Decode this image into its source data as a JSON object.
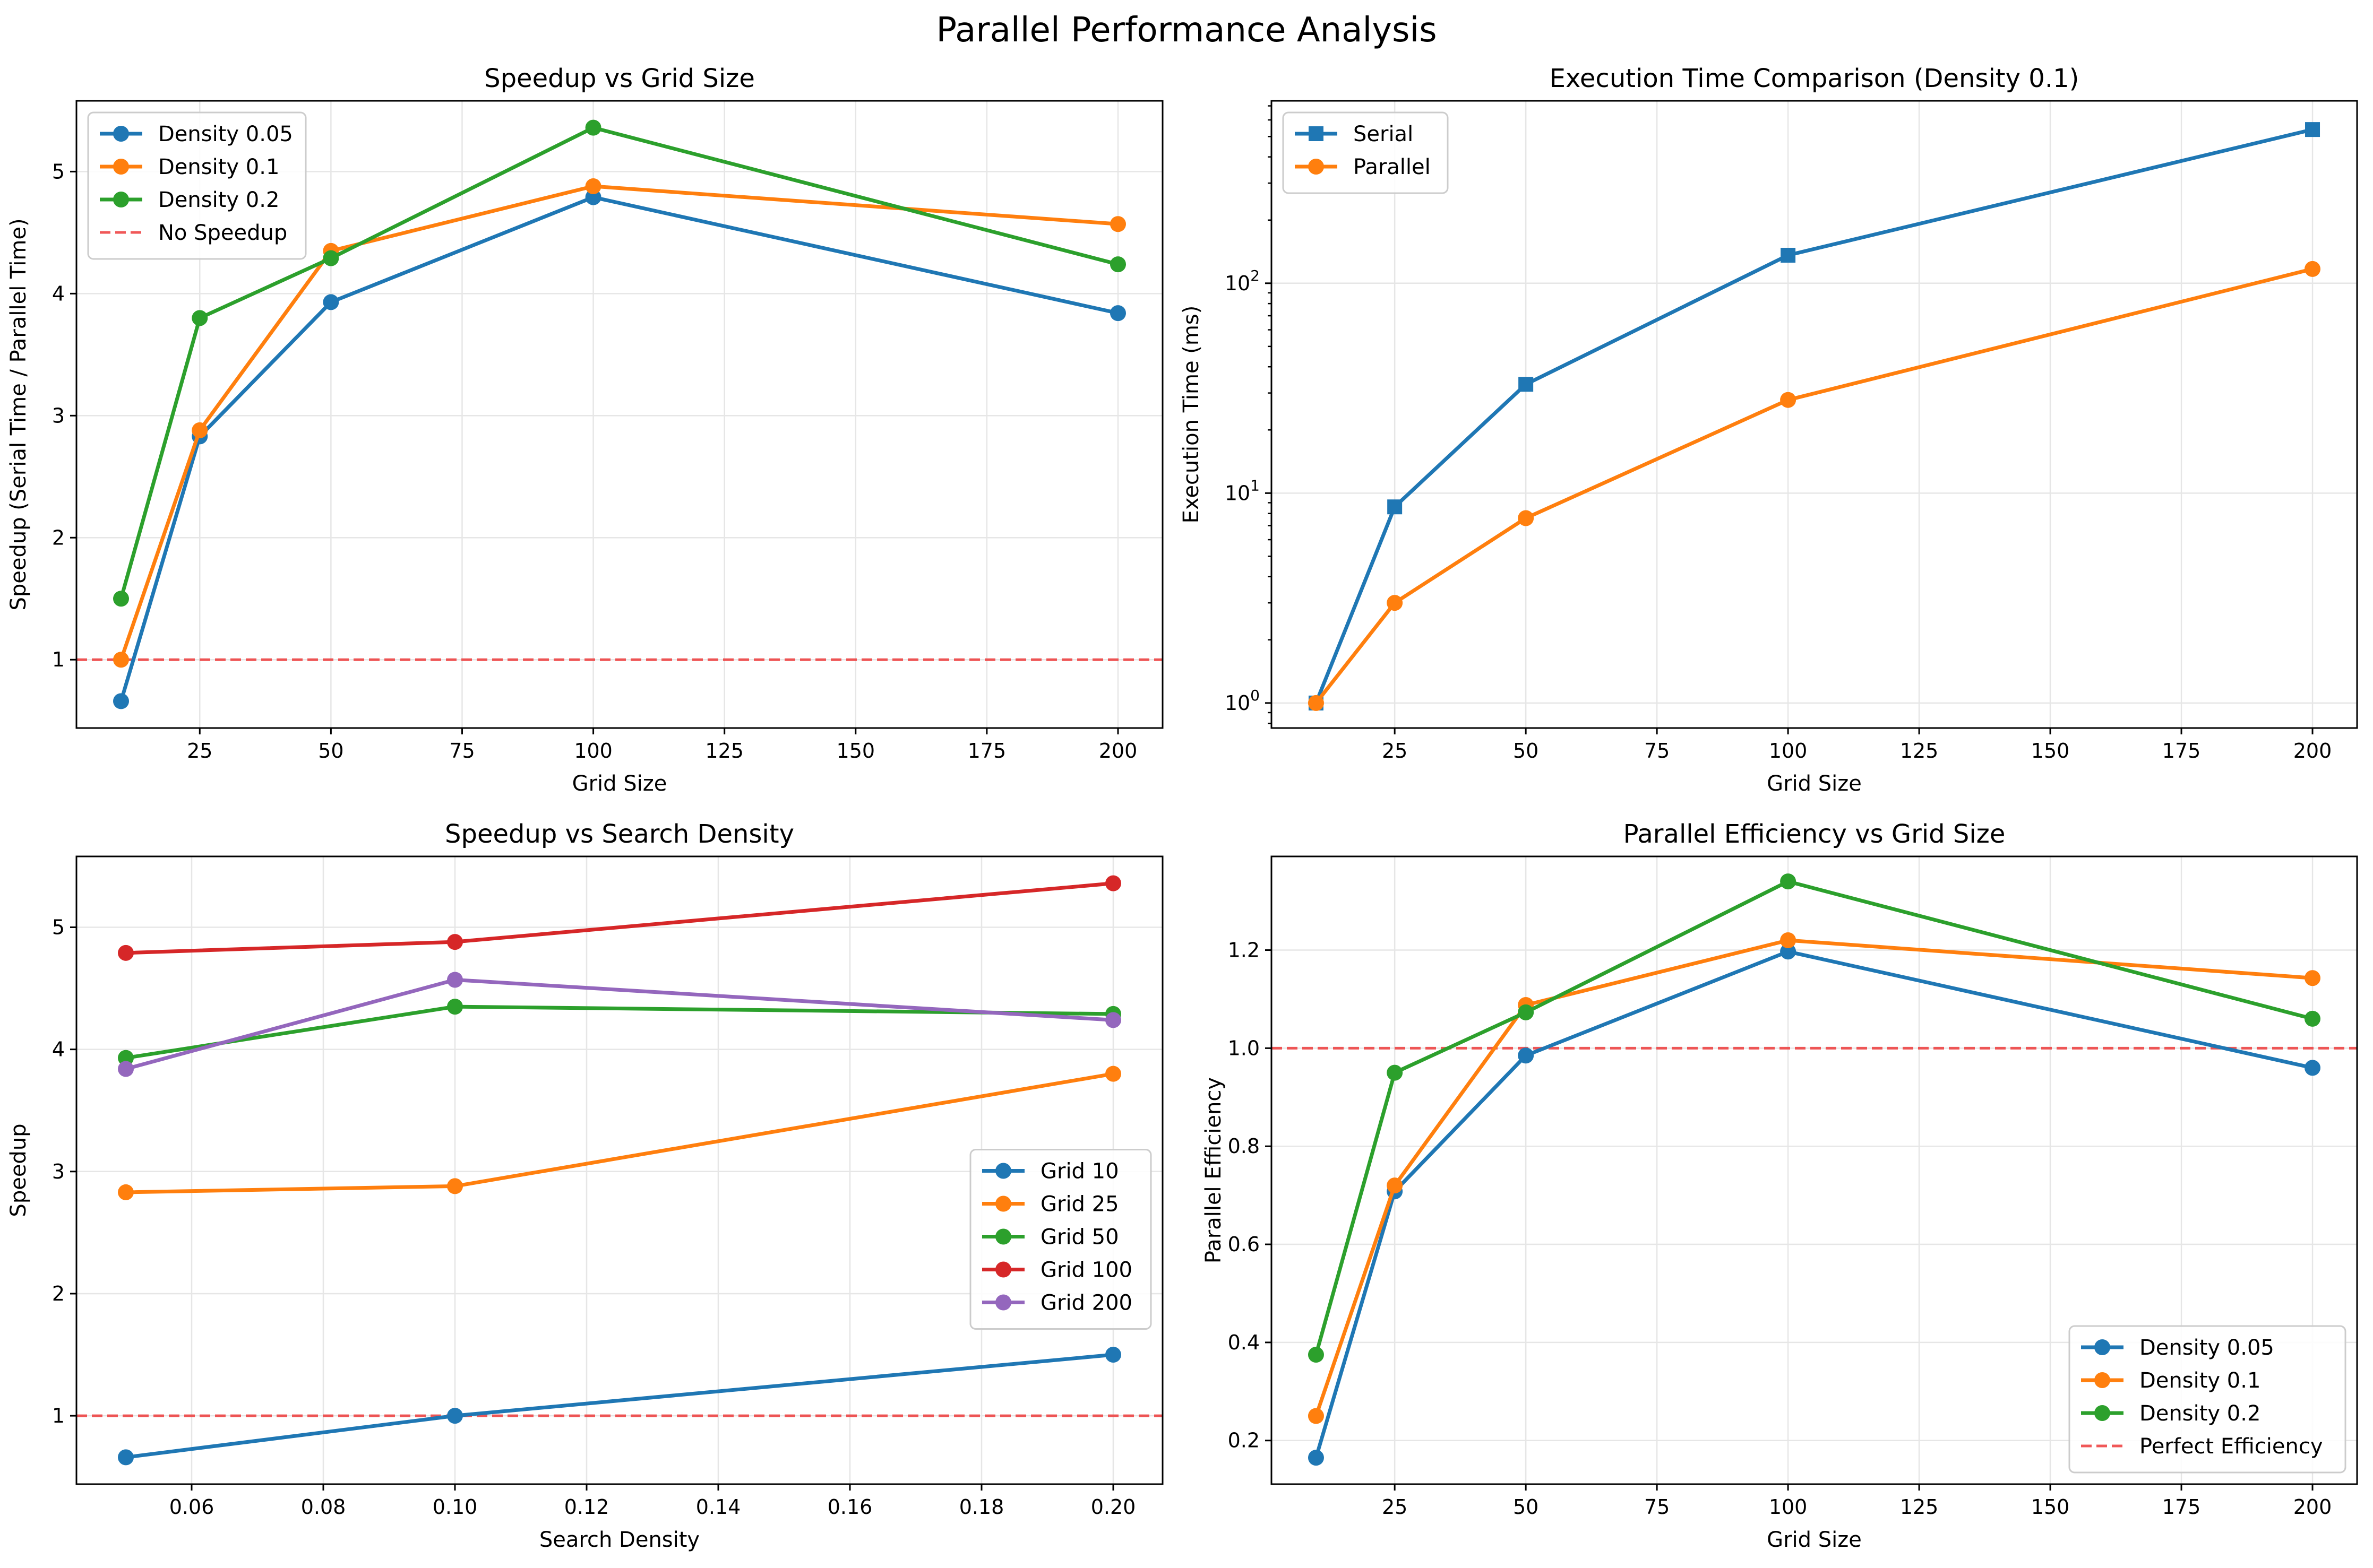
{
  "figure": {
    "title": "Parallel Performance Analysis"
  },
  "colors": {
    "blue": "#1f77b4",
    "orange": "#ff7f0e",
    "green": "#2ca02c",
    "red": "#d62728",
    "purple": "#9467bd",
    "reference_red": "#ee3b3b"
  },
  "chart_data": [
    {
      "type": "line",
      "title": "Speedup vs Grid Size",
      "xlabel": "Grid Size",
      "ylabel": "Speedup (Serial Time / Parallel Time)",
      "xlim": [
        1.5,
        208.5
      ],
      "ylim": [
        0.44,
        5.58
      ],
      "xticks": [
        25,
        50,
        75,
        100,
        125,
        150,
        175,
        200
      ],
      "yticks": [
        1,
        2,
        3,
        4,
        5
      ],
      "grid": true,
      "legend_position": "upper-left",
      "x": [
        10,
        25,
        50,
        100,
        200
      ],
      "series": [
        {
          "name": "Density 0.05",
          "color": "#1f77b4",
          "marker": "circle",
          "values": [
            0.66,
            2.83,
            3.93,
            4.79,
            3.84
          ]
        },
        {
          "name": "Density 0.1",
          "color": "#ff7f0e",
          "marker": "circle",
          "values": [
            1.0,
            2.88,
            4.35,
            4.88,
            4.57
          ]
        },
        {
          "name": "Density 0.2",
          "color": "#2ca02c",
          "marker": "circle",
          "values": [
            1.5,
            3.8,
            4.29,
            5.36,
            4.24
          ]
        }
      ],
      "reference_lines": [
        {
          "name": "No Speedup",
          "y": 1,
          "color": "#ee3b3b",
          "style": "dashed"
        }
      ]
    },
    {
      "type": "line",
      "title": "Execution Time Comparison (Density 0.1)",
      "xlabel": "Grid Size",
      "ylabel": "Execution Time (ms)",
      "xlim": [
        1.5,
        208.5
      ],
      "ylim": [
        0.76,
        740
      ],
      "yscale": "log",
      "xticks": [
        25,
        50,
        75,
        100,
        125,
        150,
        175,
        200
      ],
      "yticks": [
        1,
        10,
        100
      ],
      "ytick_labels": [
        {
          "base": "10",
          "exp": "0"
        },
        {
          "base": "10",
          "exp": "1"
        },
        {
          "base": "10",
          "exp": "2"
        }
      ],
      "grid": true,
      "legend_position": "upper-left",
      "x": [
        10,
        25,
        50,
        100,
        200
      ],
      "series": [
        {
          "name": "Serial",
          "color": "#1f77b4",
          "marker": "square",
          "values": [
            1.0,
            8.6,
            33.0,
            136.0,
            540.0
          ]
        },
        {
          "name": "Parallel",
          "color": "#ff7f0e",
          "marker": "circle",
          "values": [
            1.0,
            3.0,
            7.6,
            27.8,
            117.0
          ]
        }
      ]
    },
    {
      "type": "line",
      "title": "Speedup vs Search Density",
      "xlabel": "Search Density",
      "ylabel": "Speedup",
      "xlim": [
        0.0425,
        0.2075
      ],
      "ylim": [
        0.44,
        5.58
      ],
      "xticks": [
        0.06,
        0.08,
        0.1,
        0.12,
        0.14,
        0.16,
        0.18,
        0.2
      ],
      "xtick_labels": [
        "0.06",
        "0.08",
        "0.10",
        "0.12",
        "0.14",
        "0.16",
        "0.18",
        "0.20"
      ],
      "yticks": [
        1,
        2,
        3,
        4,
        5
      ],
      "grid": true,
      "legend_position": "center-right",
      "x": [
        0.05,
        0.1,
        0.2
      ],
      "series": [
        {
          "name": "Grid 10",
          "color": "#1f77b4",
          "marker": "circle",
          "values": [
            0.66,
            1.0,
            1.5
          ]
        },
        {
          "name": "Grid 25",
          "color": "#ff7f0e",
          "marker": "circle",
          "values": [
            2.83,
            2.88,
            3.8
          ]
        },
        {
          "name": "Grid 50",
          "color": "#2ca02c",
          "marker": "circle",
          "values": [
            3.93,
            4.35,
            4.29
          ]
        },
        {
          "name": "Grid 100",
          "color": "#d62728",
          "marker": "circle",
          "values": [
            4.79,
            4.88,
            5.36
          ]
        },
        {
          "name": "Grid 200",
          "color": "#9467bd",
          "marker": "circle",
          "values": [
            3.84,
            4.57,
            4.24
          ]
        }
      ],
      "reference_lines": [
        {
          "y": 1,
          "color": "#ee3b3b",
          "style": "dashed"
        }
      ]
    },
    {
      "type": "line",
      "title": "Parallel Efficiency vs Grid Size",
      "xlabel": "Grid Size",
      "ylabel": "Parallel Efficiency",
      "xlim": [
        1.5,
        208.5
      ],
      "ylim": [
        0.111,
        1.391
      ],
      "xticks": [
        25,
        50,
        75,
        100,
        125,
        150,
        175,
        200
      ],
      "yticks": [
        0.2,
        0.4,
        0.6,
        0.8,
        1.0,
        1.2
      ],
      "ytick_labels": [
        "0.2",
        "0.4",
        "0.6",
        "0.8",
        "1.0",
        "1.2"
      ],
      "grid": true,
      "legend_position": "lower-right",
      "x": [
        10,
        25,
        50,
        100,
        200
      ],
      "series": [
        {
          "name": "Density 0.05",
          "color": "#1f77b4",
          "marker": "circle",
          "values": [
            0.165,
            0.708,
            0.985,
            1.197,
            0.96
          ]
        },
        {
          "name": "Density 0.1",
          "color": "#ff7f0e",
          "marker": "circle",
          "values": [
            0.25,
            0.72,
            1.088,
            1.22,
            1.143
          ]
        },
        {
          "name": "Density 0.2",
          "color": "#2ca02c",
          "marker": "circle",
          "values": [
            0.375,
            0.95,
            1.073,
            1.34,
            1.06
          ]
        }
      ],
      "reference_lines": [
        {
          "name": "Perfect Efficiency",
          "y": 1,
          "color": "#ee3b3b",
          "style": "dashed"
        }
      ]
    }
  ]
}
